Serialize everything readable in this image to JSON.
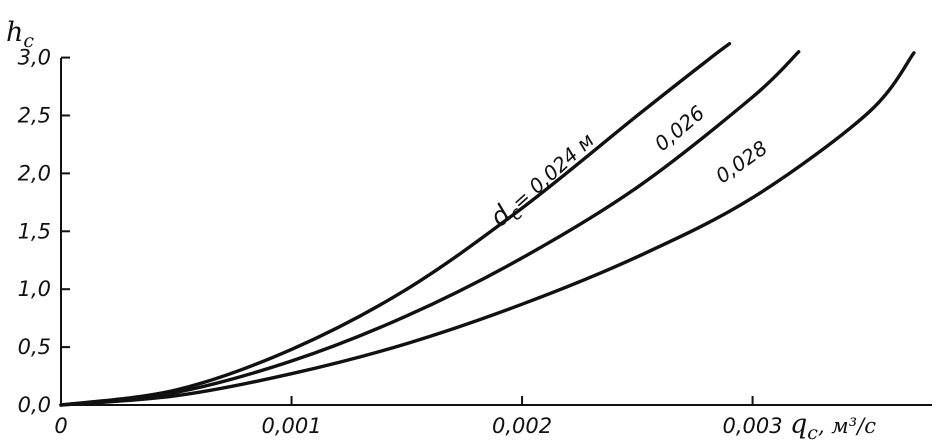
{
  "chart_data": {
    "type": "line",
    "title": "",
    "ylabel_main": "h",
    "ylabel_sub": "c",
    "xlabel_main": "q",
    "xlabel_sub": "c",
    "xlabel_units": ", м³/с",
    "xlim": [
      0,
      0.0038
    ],
    "ylim": [
      0,
      3.1
    ],
    "xticks": [
      0,
      0.001,
      0.002,
      0.003
    ],
    "xtick_labels": [
      "0",
      "0,001",
      "0,002",
      "0,003"
    ],
    "yticks": [
      0,
      0.5,
      1,
      1.5,
      2,
      2.5,
      3
    ],
    "ytick_labels": [
      "0,0",
      "0,5",
      "1,0",
      "1,5",
      "2,0",
      "2,5",
      "3,0"
    ],
    "grid": false,
    "series": [
      {
        "label_main": "d",
        "label_sub": "c",
        "label_rest": "= 0,024 м",
        "x": [
          0,
          0.0005,
          0.001,
          0.0015,
          0.002,
          0.0025,
          0.0028,
          0.0029
        ],
        "y": [
          0,
          0.13,
          0.48,
          1.0,
          1.7,
          2.5,
          2.97,
          3.12
        ]
      },
      {
        "label_rest": "0,026",
        "x": [
          0,
          0.0005,
          0.001,
          0.0015,
          0.002,
          0.0025,
          0.003,
          0.0032
        ],
        "y": [
          0,
          0.11,
          0.38,
          0.77,
          1.27,
          1.88,
          2.66,
          3.05
        ]
      },
      {
        "label_rest": "0,028",
        "x": [
          0,
          0.0005,
          0.001,
          0.0015,
          0.002,
          0.0025,
          0.003,
          0.0035,
          0.0037
        ],
        "y": [
          0,
          0.08,
          0.27,
          0.53,
          0.87,
          1.28,
          1.79,
          2.52,
          3.04
        ]
      }
    ]
  }
}
